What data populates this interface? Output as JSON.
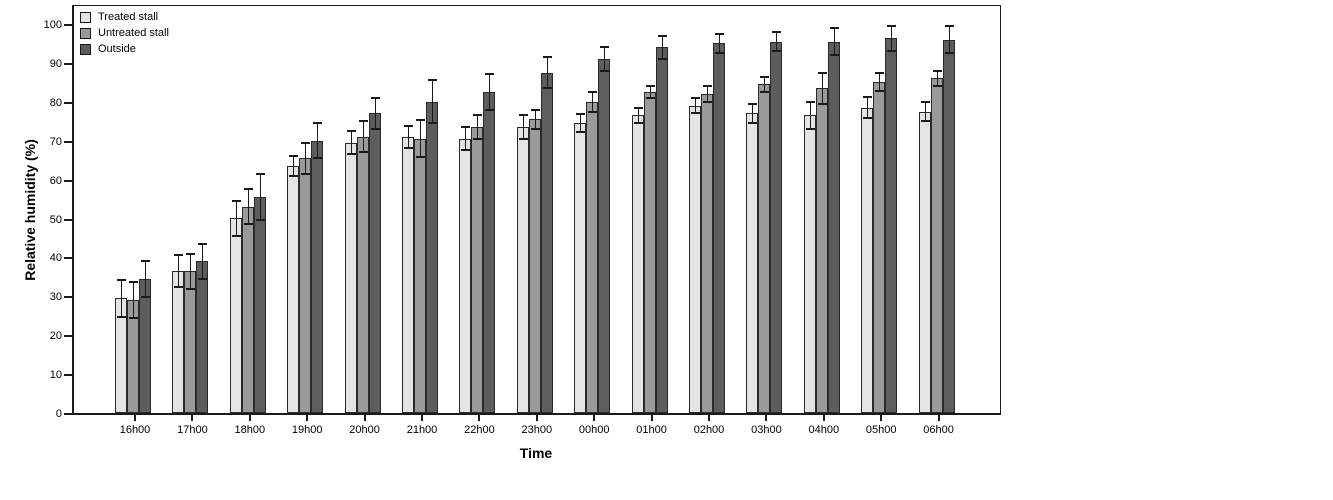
{
  "chart_data": {
    "type": "bar",
    "title": "",
    "xlabel": "Time",
    "ylabel": "Relative humidity (%)",
    "ylim": [
      0,
      100
    ],
    "ytick_step": 10,
    "yticks": [
      0,
      10,
      20,
      30,
      40,
      50,
      60,
      70,
      80,
      90,
      100
    ],
    "grid": false,
    "error_bars": true,
    "legend_position": "top-left-inside",
    "categories": [
      "16h00",
      "17h00",
      "18h00",
      "19h00",
      "20h00",
      "21h00",
      "22h00",
      "23h00",
      "00h00",
      "01h00",
      "02h00",
      "03h00",
      "04h00",
      "05h00",
      "06h00"
    ],
    "series": [
      {
        "name": "Treated stall",
        "color": "#e4e4e4",
        "values": [
          29.5,
          36.5,
          50,
          63.5,
          69.5,
          71,
          70.5,
          73.5,
          74.5,
          76.5,
          79,
          77,
          76.5,
          78.5,
          77.5
        ],
        "errors": [
          4.8,
          4,
          4.5,
          2.5,
          3,
          2.8,
          3,
          3,
          2.3,
          2,
          2,
          2.5,
          3.5,
          2.7,
          2.5
        ]
      },
      {
        "name": "Untreated stall",
        "color": "#9a9a9a",
        "values": [
          29,
          36.5,
          53,
          65.5,
          71,
          70.5,
          73.5,
          75.5,
          80,
          82.5,
          82,
          84.5,
          83.5,
          85,
          86
        ],
        "errors": [
          4.6,
          4.5,
          4.5,
          4,
          4,
          4.8,
          3.1,
          2.4,
          2.5,
          1.5,
          2,
          2,
          4,
          2.3,
          2
        ]
      },
      {
        "name": "Outside",
        "color": "#5d5d5d",
        "values": [
          34.5,
          39,
          55.5,
          70,
          77,
          80,
          82.5,
          87.5,
          91,
          94,
          95,
          95.5,
          95.5,
          96.3,
          96
        ],
        "errors": [
          4.7,
          4.5,
          6,
          4.5,
          4,
          5.5,
          4.7,
          4,
          3,
          3,
          2.5,
          2.5,
          3.4,
          3.3,
          3.4
        ]
      }
    ],
    "colors": {
      "bar_border": "#2a2a2a",
      "error_bar": "#1a1a1a",
      "frame": "#1c1c1c",
      "background": "#ffffff",
      "text": "#000000"
    }
  }
}
